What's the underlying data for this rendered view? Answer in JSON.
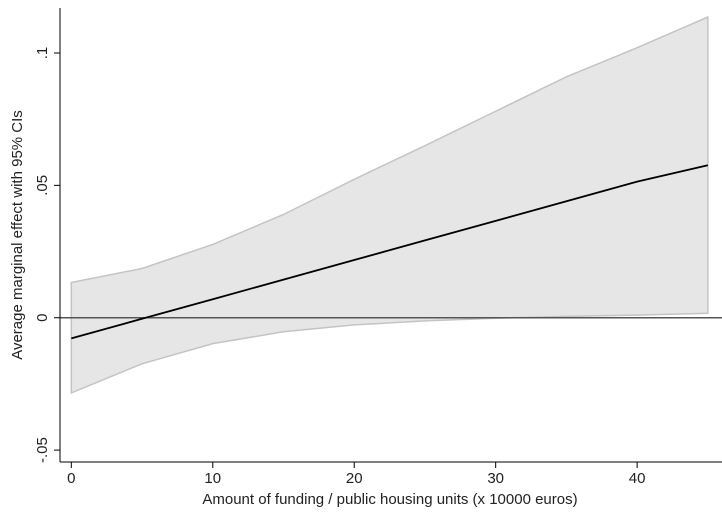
{
  "chart_data": {
    "type": "line_ci",
    "x_label": "Amount of funding / public housing units (x 10000 euros)",
    "y_label": "Average marginal effect with 95% CIs",
    "x": [
      0,
      5,
      10,
      15,
      20,
      25,
      30,
      35,
      40,
      45
    ],
    "values": [
      -0.0078,
      -0.0004,
      0.007,
      0.0144,
      0.0218,
      0.0292,
      0.0366,
      0.044,
      0.0514,
      0.0576
    ],
    "lower": [
      -0.0284,
      -0.0174,
      -0.0098,
      -0.0053,
      -0.0027,
      -0.0012,
      -0.0002,
      0.0005,
      0.001,
      0.0017
    ],
    "upper": [
      0.0133,
      0.0186,
      0.0277,
      0.039,
      0.0523,
      0.065,
      0.078,
      0.091,
      0.102,
      0.1136
    ],
    "line_color": "#000000",
    "band_color": "#e6e6e6",
    "band_edge_color": "#c4c4c4",
    "reference_line": 0,
    "reference_color": "#555555",
    "xlim": [
      -0.8,
      46
    ],
    "ylim": [
      -0.0545,
      0.117
    ],
    "xticks": [
      0,
      10,
      20,
      30,
      40
    ],
    "yticks": [
      {
        "value": -0.05,
        "label": "-.05"
      },
      0,
      {
        "value": 0.05,
        "label": ".05"
      },
      {
        "value": 0.1,
        "label": ".1"
      }
    ]
  }
}
